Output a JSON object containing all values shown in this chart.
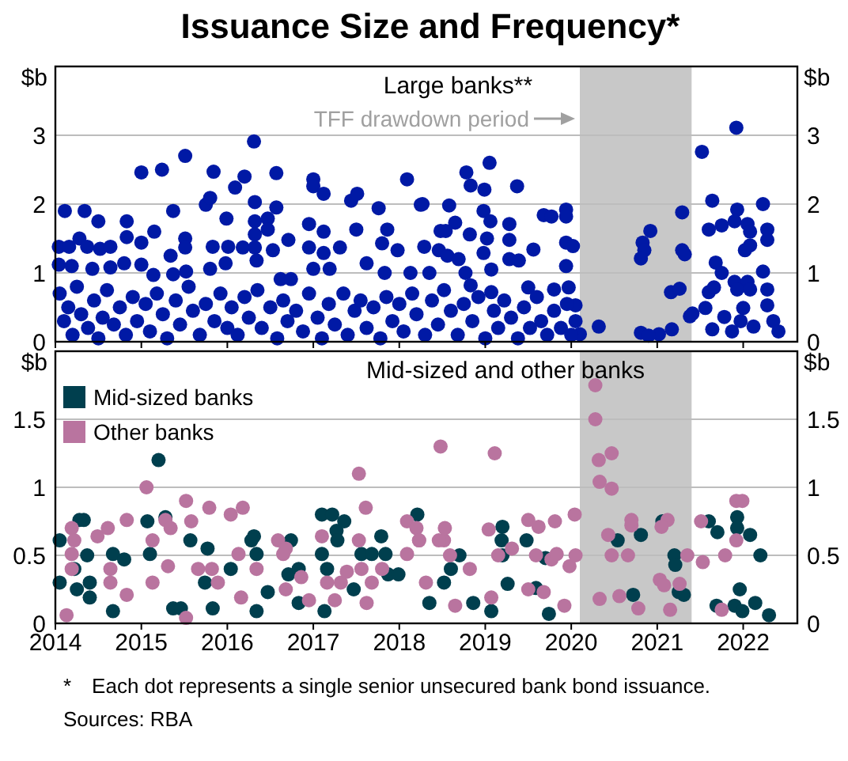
{
  "chart_data": [
    {
      "type": "scatter",
      "title": "Issuance Size and Frequency*",
      "subtitle": "Large banks**",
      "ylabel": "$b",
      "y2label": "$b",
      "xlim": [
        2014,
        2022.63
      ],
      "xticks": [
        2014,
        2015,
        2016,
        2017,
        2018,
        2019,
        2020,
        2021,
        2022
      ],
      "ylim": [
        0,
        4
      ],
      "yticks": [
        0,
        1,
        2,
        3
      ],
      "y2lim": [
        0,
        4
      ],
      "y2ticks": [
        0,
        1,
        2,
        3
      ],
      "tick_labels": "y",
      "grid": "y",
      "marker": "circle",
      "bands": [
        {
          "axis": "x",
          "from": 2020.1,
          "to": 2021.4,
          "label": "TFF drawdown period",
          "color": "#c8c8c8"
        }
      ],
      "series": [
        {
          "color": "#0019a5",
          "x": [
            2014.11,
            2014.34,
            2014.5,
            2014.83,
            2015.0,
            2015.24,
            2015.37,
            2015.51,
            2015.84,
            2016.09,
            2016.2,
            2016.31,
            2016.32,
            2016.57,
            2016.57,
            2017.0,
            2017.0,
            2017.12,
            2017.44,
            2017.51,
            2017.76,
            2018.09,
            2018.25,
            2014.04,
            2014.16,
            2014.28,
            2014.37,
            2014.52,
            2014.64,
            2014.83,
            2015.0,
            2015.15,
            2015.34,
            2015.51,
            2015.51,
            2015.75,
            2015.8,
            2015.99,
            2015.83,
            2016.01,
            2016.18,
            2016.32,
            2016.32,
            2016.32,
            2016.47,
            2016.47,
            2016.53,
            2016.71,
            2016.95,
            2016.95,
            2017.12,
            2017.12,
            2017.31,
            2017.5,
            2017.8,
            2017.86,
            2017.98,
            2014.04,
            2014.19,
            2014.43,
            2014.64,
            2014.8,
            2015.0,
            2015.14,
            2015.37,
            2015.52,
            2015.8,
            2015.98,
            2016.34,
            2016.62,
            2016.74,
            2017.0,
            2017.19,
            2017.62,
            2017.83,
            2018.13,
            2018.27,
            2018.58,
            2018.78,
            2018.83,
            2018.99,
            2019.05,
            2019.37,
            2018.98,
            2018.65,
            2018.48,
            2018.54,
            2018.82,
            2019.06,
            2019.28,
            2019.02,
            2018.29,
            2018.46,
            2018.56,
            2018.69,
            2018.98,
            2019.28,
            2019.28,
            2019.39,
            2019.56,
            2019.68,
            2019.77,
            2019.94,
            2019.94,
            2019.94,
            2020.02,
            2019.94,
            2018.35,
            2018.77,
            2018.83,
            2019.07,
            2019.07,
            2019.5,
            2019.8,
            2019.97,
            2020.05,
            2020.32,
            2020.81,
            2020.83,
            2020.85,
            2020.81,
            2020.92,
            2021.29,
            2021.16,
            2021.26,
            2021.29,
            2021.32,
            2021.17,
            2021.38,
            2021.02,
            2020.9,
            2020.1,
            2021.52,
            2021.92,
            2021.64,
            2021.93,
            2022.23,
            2021.6,
            2021.75,
            2021.9,
            2022.05,
            2022.08,
            2022.28,
            2022.28,
            2022.08,
            2022.02,
            2021.68,
            2021.75,
            2022.23,
            2021.9,
            2022.05,
            2021.93,
            2022.08,
            2021.6,
            2021.66,
            2022.28,
            2022.28,
            2021.41,
            2021.56,
            2021.78,
            2022.0,
            2021.97,
            2022.12,
            2022.35,
            2022.41,
            2021.87,
            2021.64,
            2014.05,
            2014.1,
            2014.15,
            2014.2,
            2014.25,
            2014.3,
            2014.38,
            2014.45,
            2014.5,
            2014.55,
            2014.6,
            2014.68,
            2014.75,
            2014.82,
            2014.9,
            2014.95,
            2015.05,
            2015.1,
            2015.18,
            2015.25,
            2015.3,
            2015.4,
            2015.45,
            2015.55,
            2015.6,
            2015.68,
            2015.75,
            2015.85,
            2015.92,
            2016.0,
            2016.05,
            2016.12,
            2016.2,
            2016.25,
            2016.35,
            2016.4,
            2016.5,
            2016.58,
            2016.65,
            2016.7,
            2016.8,
            2016.88,
            2016.95,
            2017.05,
            2017.1,
            2017.18,
            2017.25,
            2017.35,
            2017.4,
            2017.48,
            2017.55,
            2017.62,
            2017.7,
            2017.78,
            2017.85,
            2017.92,
            2018.0,
            2018.05,
            2018.15,
            2018.2,
            2018.3,
            2018.38,
            2018.45,
            2018.52,
            2018.6,
            2018.68,
            2018.75,
            2018.85,
            2018.92,
            2019.0,
            2019.1,
            2019.15,
            2019.22,
            2019.3,
            2019.38,
            2019.45,
            2019.52,
            2019.6,
            2019.65,
            2019.72,
            2019.8,
            2019.88,
            2019.95,
            2020.0,
            2020.05
          ],
          "values": [
            1.9,
            1.9,
            1.75,
            1.75,
            2.46,
            2.5,
            1.9,
            2.7,
            2.47,
            2.24,
            2.4,
            2.91,
            2.03,
            2.45,
            1.95,
            2.36,
            2.26,
            2.15,
            2.05,
            2.15,
            1.94,
            2.36,
            1.99,
            1.38,
            1.38,
            1.5,
            1.38,
            1.35,
            1.38,
            1.52,
            1.44,
            1.6,
            1.25,
            1.5,
            1.37,
            1.99,
            2.09,
            1.79,
            1.38,
            1.38,
            1.37,
            1.75,
            1.56,
            1.37,
            1.79,
            1.63,
            1.33,
            1.48,
            1.71,
            1.37,
            1.6,
            1.29,
            1.37,
            1.63,
            1.43,
            1.63,
            1.33,
            1.12,
            1.1,
            1.06,
            1.08,
            1.14,
            1.12,
            0.97,
            0.98,
            1.02,
            1.06,
            1.14,
            1.18,
            0.91,
            0.91,
            1.06,
            1.06,
            1.14,
            1.0,
            1.0,
            2.0,
            1.98,
            2.46,
            2.27,
            2.21,
            2.6,
            2.26,
            1.9,
            1.73,
            1.61,
            1.61,
            1.56,
            1.75,
            1.71,
            1.5,
            1.38,
            1.33,
            1.25,
            1.2,
            1.29,
            1.48,
            1.2,
            1.18,
            1.34,
            1.84,
            1.82,
            1.92,
            1.82,
            1.44,
            1.39,
            1.1,
            1.0,
            1.0,
            0.82,
            1.05,
            0.72,
            0.79,
            0.76,
            0.79,
            0.53,
            0.22,
            0.13,
            1.44,
            1.33,
            1.21,
            1.61,
            1.88,
            0.72,
            0.77,
            1.33,
            1.27,
            0.18,
            0.37,
            0.11,
            0.09,
            0.11,
            2.76,
            3.11,
            2.05,
            1.92,
            2.0,
            1.63,
            1.69,
            1.75,
            1.71,
            1.6,
            1.63,
            1.48,
            1.4,
            1.33,
            1.15,
            1.0,
            1.02,
            0.87,
            0.87,
            0.76,
            0.76,
            0.72,
            0.79,
            0.76,
            0.53,
            0.41,
            0.49,
            0.36,
            0.49,
            0.3,
            0.22,
            0.3,
            0.15,
            0.15,
            0.18,
            0.7,
            0.3,
            0.5,
            0.1,
            0.8,
            0.4,
            0.2,
            0.6,
            0.05,
            0.35,
            0.75,
            0.25,
            0.5,
            0.1,
            0.65,
            0.3,
            0.55,
            0.15,
            0.7,
            0.4,
            0.05,
            0.6,
            0.25,
            0.8,
            0.45,
            0.1,
            0.55,
            0.3,
            0.7,
            0.2,
            0.5,
            0.1,
            0.65,
            0.35,
            0.75,
            0.2,
            0.5,
            0.05,
            0.6,
            0.3,
            0.45,
            0.15,
            0.7,
            0.35,
            0.05,
            0.55,
            0.25,
            0.7,
            0.1,
            0.45,
            0.6,
            0.2,
            0.5,
            0.05,
            0.65,
            0.3,
            0.55,
            0.15,
            0.7,
            0.4,
            0.1,
            0.6,
            0.25,
            0.75,
            0.45,
            0.1,
            0.55,
            0.3,
            0.65,
            0.05,
            0.45,
            0.2,
            0.6,
            0.35,
            0.05,
            0.5,
            0.2,
            0.65,
            0.3,
            0.1,
            0.45,
            0.2,
            0.55,
            0.1,
            0.3
          ]
        }
      ]
    },
    {
      "type": "scatter",
      "title": "Mid-sized and other banks",
      "ylabel": "$b",
      "y2label": "$b",
      "xlim": [
        2014,
        2022.63
      ],
      "xticks": [
        2014,
        2015,
        2016,
        2017,
        2018,
        2019,
        2020,
        2021,
        2022
      ],
      "ylim": [
        0,
        2
      ],
      "yticks": [
        0,
        0.5,
        1,
        1.5
      ],
      "y2lim": [
        0,
        2
      ],
      "y2ticks": [
        0,
        0.5,
        1,
        1.5
      ],
      "grid": "y",
      "marker": "circle",
      "legend": "top left",
      "bands": [
        {
          "axis": "x",
          "from": 2020.1,
          "to": 2021.4,
          "color": "#c8c8c8"
        }
      ],
      "annotations": [
        "* Each dot represents a single senior unsecured bank bond issuance.",
        "Sources: RBA"
      ],
      "series": [
        {
          "name": "Mid-sized banks",
          "color": "#003f4e",
          "x": [
            2014.05,
            2014.05,
            2014.22,
            2014.33,
            2014.28,
            2014.37,
            2014.4,
            2014.4,
            2014.25,
            2014.67,
            2014.8,
            2014.67,
            2015.07,
            2015.1,
            2015.2,
            2015.28,
            2015.37,
            2015.46,
            2015.57,
            2015.74,
            2015.77,
            2015.83,
            2016.04,
            2016.31,
            2016.28,
            2016.34,
            2016.34,
            2016.47,
            2016.74,
            2016.71,
            2016.83,
            2016.83,
            2017.1,
            2017.16,
            2017.1,
            2017.22,
            2017.27,
            2017.28,
            2017.36,
            2017.56,
            2017.68,
            2017.79,
            2017.84,
            2017.87,
            2017.99,
            2018.21,
            2017.47,
            2017.13,
            2019.2,
            2019.19,
            2019.2,
            2018.7,
            2018.6,
            2018.52,
            2019.48,
            2019.7,
            2019.59,
            2019.26,
            2019.74,
            2020.54,
            2020.81,
            2020.72,
            2021.06,
            2021.2,
            2021.21,
            2021.25,
            2021.31,
            2021.6,
            2021.7,
            2021.93,
            2021.93,
            2022.08,
            2022.2,
            2021.9,
            2021.96,
            2021.99,
            2022.14,
            2022.3,
            2021.69,
            2018.86,
            2019.07,
            2018.35
          ],
          "values": [
            0.61,
            0.3,
            0.4,
            0.76,
            0.76,
            0.5,
            0.3,
            0.19,
            0.25,
            0.51,
            0.47,
            0.09,
            0.75,
            0.51,
            1.2,
            0.78,
            0.11,
            0.11,
            0.61,
            0.3,
            0.55,
            0.11,
            0.4,
            0.64,
            0.61,
            0.51,
            0.09,
            0.23,
            0.61,
            0.36,
            0.4,
            0.15,
            0.8,
            0.4,
            0.51,
            0.8,
            0.68,
            0.61,
            0.75,
            0.51,
            0.51,
            0.64,
            0.51,
            0.36,
            0.36,
            0.8,
            0.25,
            0.09,
            0.71,
            0.61,
            0.5,
            0.5,
            0.4,
            0.3,
            0.61,
            0.48,
            0.26,
            0.29,
            0.07,
            0.61,
            0.65,
            0.21,
            0.75,
            0.5,
            0.43,
            0.23,
            0.21,
            0.75,
            0.67,
            0.78,
            0.7,
            0.65,
            0.5,
            0.13,
            0.25,
            0.09,
            0.15,
            0.06,
            0.13,
            0.15,
            0.09,
            0.15
          ]
        },
        {
          "name": "Other banks",
          "color": "#b9749f",
          "x": [
            2014.19,
            2014.22,
            2014.19,
            2014.19,
            2014.49,
            2014.61,
            2014.64,
            2014.64,
            2014.83,
            2015.06,
            2015.13,
            2015.13,
            2015.28,
            2015.34,
            2015.31,
            2015.52,
            2015.58,
            2015.66,
            2015.79,
            2015.82,
            2015.89,
            2016.04,
            2016.18,
            2016.13,
            2016.34,
            2016.16,
            2016.59,
            2016.68,
            2016.65,
            2016.86,
            2016.68,
            2017.1,
            2017.16,
            2017.32,
            2017.39,
            2017.53,
            2017.53,
            2017.61,
            2017.56,
            2017.68,
            2017.8,
            2018.09,
            2018.09,
            2018.23,
            2016.95,
            2017.25,
            2017.62,
            2014.83,
            2014.13,
            2015.52,
            2018.48,
            2019.11,
            2020.28,
            2020.28,
            2020.32,
            2020.47,
            2020.33,
            2020.47,
            2020.43,
            2020.7,
            2020.7,
            2020.66,
            2020.47,
            2020.33,
            2020.56,
            2020.78,
            2021.03,
            2021.08,
            2021.12,
            2021.05,
            2021.26,
            2021.35,
            2021.15,
            2021.51,
            2021.53,
            2021.79,
            2021.92,
            2021.99,
            2021.92,
            2021.75,
            2018.52,
            2018.53,
            2018.46,
            2018.2,
            2018.23,
            2018.31,
            2018.59,
            2018.82,
            2019.04,
            2019.15,
            2019.31,
            2019.5,
            2019.59,
            2019.62,
            2019.81,
            2019.77,
            2019.83,
            2019.98,
            2020.04,
            2020.05,
            2019.5,
            2019.68,
            2019.92,
            2019.07,
            2018.65
          ],
          "values": [
            0.7,
            0.61,
            0.51,
            0.4,
            0.64,
            0.7,
            0.4,
            0.3,
            0.76,
            1.0,
            0.61,
            0.3,
            0.76,
            0.7,
            0.42,
            0.9,
            0.75,
            0.4,
            0.85,
            0.4,
            0.3,
            0.8,
            0.85,
            0.51,
            0.4,
            0.19,
            0.61,
            0.55,
            0.51,
            0.34,
            0.25,
            0.64,
            0.3,
            0.3,
            0.38,
            1.1,
            0.61,
            0.85,
            0.4,
            0.3,
            0.4,
            0.75,
            0.51,
            0.61,
            0.17,
            0.17,
            0.15,
            0.21,
            0.06,
            0.04,
            1.3,
            1.25,
            1.75,
            1.5,
            1.2,
            1.25,
            1.04,
            0.99,
            0.65,
            0.72,
            0.76,
            0.5,
            0.5,
            0.18,
            0.2,
            0.11,
            0.32,
            0.28,
            0.76,
            0.71,
            0.29,
            0.5,
            0.1,
            0.75,
            0.45,
            0.5,
            0.9,
            0.9,
            0.61,
            0.1,
            0.61,
            0.7,
            0.61,
            0.7,
            0.61,
            0.3,
            0.5,
            0.4,
            0.69,
            0.5,
            0.55,
            0.76,
            0.5,
            0.71,
            0.75,
            0.47,
            0.51,
            0.42,
            0.8,
            0.5,
            0.25,
            0.23,
            0.13,
            0.19,
            0.13
          ]
        }
      ]
    }
  ]
}
